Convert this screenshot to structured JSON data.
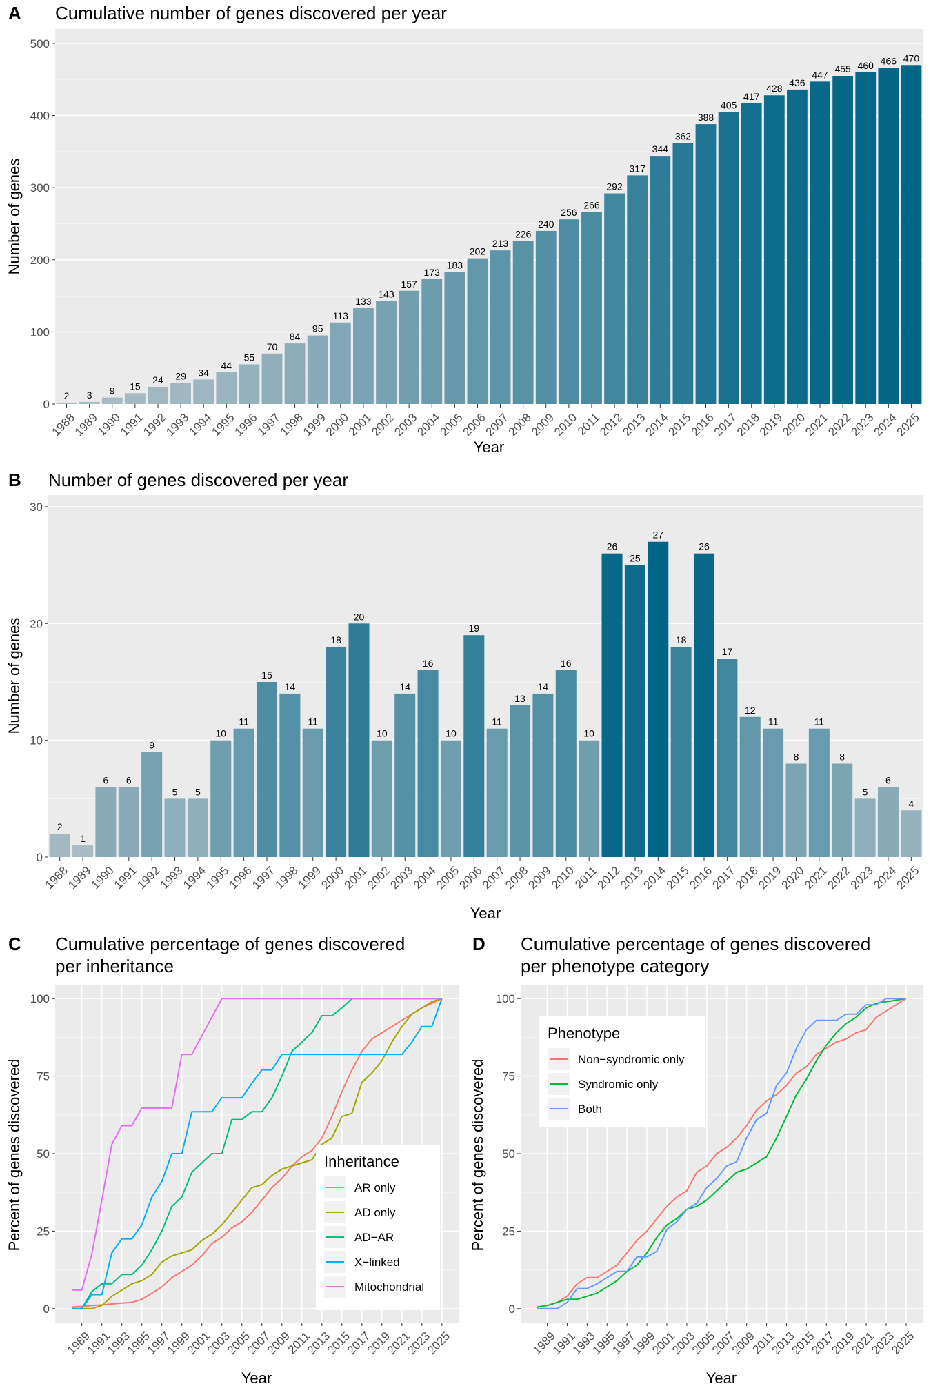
{
  "panels": {
    "A": {
      "letter": "A",
      "title": "Cumulative number of genes discovered per year",
      "xlabel": "Year",
      "ylabel": "Number of genes"
    },
    "B": {
      "letter": "B",
      "title": "Number of genes discovered per year",
      "xlabel": "Year",
      "ylabel": "Number of genes"
    },
    "C": {
      "letter": "C",
      "title_line1": "Cumulative percentage of genes discovered",
      "title_line2": "per inheritance",
      "xlabel": "Year",
      "ylabel": "Percent of genes discovered",
      "legend_title": "Inheritance"
    },
    "D": {
      "letter": "D",
      "title_line1": "Cumulative percentage of genes discovered",
      "title_line2": "per phenotype category",
      "xlabel": "Year",
      "ylabel": "Percent of genes discovered",
      "legend_title": "Phenotype"
    }
  },
  "colors": {
    "panel_bg": "#ebebeb",
    "grid": "#ffffff",
    "bar_low": "#a9bcc4",
    "bar_high": "#006587"
  },
  "chart_data": [
    {
      "id": "A",
      "type": "bar",
      "title": "Cumulative number of genes discovered per year",
      "xlabel": "Year",
      "ylabel": "Number of genes",
      "ylim": [
        0,
        520
      ],
      "yticks": [
        0,
        100,
        200,
        300,
        400,
        500
      ],
      "categories": [
        "1988",
        "1989",
        "1990",
        "1991",
        "1992",
        "1993",
        "1994",
        "1995",
        "1996",
        "1997",
        "1998",
        "1999",
        "2000",
        "2001",
        "2002",
        "2003",
        "2004",
        "2005",
        "2006",
        "2007",
        "2008",
        "2009",
        "2010",
        "2011",
        "2012",
        "2013",
        "2014",
        "2015",
        "2016",
        "2017",
        "2018",
        "2019",
        "2020",
        "2021",
        "2022",
        "2023",
        "2024",
        "2025"
      ],
      "values": [
        2,
        3,
        9,
        15,
        24,
        29,
        34,
        44,
        55,
        70,
        84,
        95,
        113,
        133,
        143,
        157,
        173,
        183,
        202,
        213,
        226,
        240,
        256,
        266,
        292,
        317,
        344,
        362,
        388,
        405,
        417,
        428,
        436,
        447,
        455,
        460,
        466,
        470
      ],
      "data_labels": true
    },
    {
      "id": "B",
      "type": "bar",
      "title": "Number of genes discovered per year",
      "xlabel": "Year",
      "ylabel": "Number of genes",
      "ylim": [
        0,
        31
      ],
      "yticks": [
        0,
        10,
        20,
        30
      ],
      "categories": [
        "1988",
        "1989",
        "1990",
        "1991",
        "1992",
        "1993",
        "1994",
        "1995",
        "1996",
        "1997",
        "1998",
        "1999",
        "2000",
        "2001",
        "2002",
        "2003",
        "2004",
        "2005",
        "2006",
        "2007",
        "2008",
        "2009",
        "2010",
        "2011",
        "2012",
        "2013",
        "2014",
        "2015",
        "2016",
        "2017",
        "2018",
        "2019",
        "2020",
        "2021",
        "2022",
        "2023",
        "2024",
        "2025"
      ],
      "values": [
        2,
        1,
        6,
        6,
        9,
        5,
        5,
        10,
        11,
        15,
        14,
        11,
        18,
        20,
        10,
        14,
        16,
        10,
        19,
        11,
        13,
        14,
        16,
        10,
        26,
        25,
        27,
        18,
        26,
        17,
        12,
        11,
        8,
        11,
        8,
        5,
        6,
        4
      ],
      "data_labels": true
    },
    {
      "id": "C",
      "type": "line",
      "title": "Cumulative percentage of genes discovered per inheritance",
      "xlabel": "Year",
      "ylabel": "Percent of genes discovered",
      "xlim": [
        1988,
        2025
      ],
      "ylim": [
        0,
        100
      ],
      "xticks": [
        1989,
        1991,
        1993,
        1995,
        1997,
        1999,
        2001,
        2003,
        2005,
        2007,
        2009,
        2011,
        2013,
        2015,
        2017,
        2019,
        2021,
        2023,
        2025
      ],
      "yticks": [
        0,
        25,
        50,
        75,
        100
      ],
      "legend_title": "Inheritance",
      "legend_position": "right",
      "x": [
        1988,
        1989,
        1990,
        1991,
        1992,
        1993,
        1994,
        1995,
        1996,
        1997,
        1998,
        1999,
        2000,
        2001,
        2002,
        2003,
        2004,
        2005,
        2006,
        2007,
        2008,
        2009,
        2010,
        2011,
        2012,
        2013,
        2014,
        2015,
        2016,
        2017,
        2018,
        2019,
        2020,
        2021,
        2022,
        2023,
        2024,
        2025
      ],
      "series": [
        {
          "name": "AR only",
          "color": "#f8766d",
          "values": [
            0.5,
            0.7,
            1,
            1.2,
            1.5,
            1.8,
            2,
            3,
            5,
            7,
            10,
            12,
            14,
            17,
            21,
            23,
            26,
            28,
            31,
            35,
            39,
            42,
            46,
            49,
            51,
            55,
            62,
            70,
            77,
            83,
            87,
            89,
            91,
            93,
            95,
            97,
            98.5,
            100
          ]
        },
        {
          "name": "AD only",
          "color": "#a3a500",
          "values": [
            0,
            0,
            0,
            1,
            4,
            6,
            8,
            9,
            11,
            15,
            17,
            18,
            19,
            22,
            24,
            27,
            31,
            35,
            39,
            40,
            43,
            45,
            46,
            47,
            48,
            53,
            55,
            62,
            63,
            73,
            76,
            80,
            86,
            91,
            95,
            97,
            99,
            100
          ]
        },
        {
          "name": "AD−AR",
          "color": "#00bf7d",
          "values": [
            0,
            0,
            5.5,
            8,
            8,
            11,
            11,
            14,
            19,
            25,
            33,
            36,
            44,
            47,
            50,
            50,
            61,
            61,
            63.5,
            63.5,
            68,
            75,
            83,
            86,
            89,
            94.5,
            94.5,
            97,
            100,
            100,
            100,
            100,
            100,
            100,
            100,
            100,
            100,
            100
          ]
        },
        {
          "name": "X−linked",
          "color": "#00b0f6",
          "values": [
            0,
            0,
            4.5,
            4.5,
            18,
            22.5,
            22.5,
            27,
            36,
            41,
            50,
            50,
            63.5,
            63.5,
            63.5,
            68,
            68,
            68,
            72.7,
            77,
            77,
            82,
            82,
            82,
            82,
            82,
            82,
            82,
            82,
            82,
            82,
            82,
            82,
            82,
            86,
            91,
            91,
            100
          ]
        },
        {
          "name": "Mitochondrial",
          "color": "#e76bf3",
          "values": [
            6,
            6,
            17.6,
            35,
            53,
            59,
            59,
            64.7,
            64.7,
            64.7,
            64.7,
            82,
            82,
            88,
            94,
            100,
            100,
            100,
            100,
            100,
            100,
            100,
            100,
            100,
            100,
            100,
            100,
            100,
            100,
            100,
            100,
            100,
            100,
            100,
            100,
            100,
            100,
            100
          ]
        }
      ]
    },
    {
      "id": "D",
      "type": "line",
      "title": "Cumulative percentage of genes discovered per phenotype category",
      "xlabel": "Year",
      "ylabel": "Percent of genes discovered",
      "xlim": [
        1988,
        2025
      ],
      "ylim": [
        0,
        100
      ],
      "xticks": [
        1989,
        1991,
        1993,
        1995,
        1997,
        1999,
        2001,
        2003,
        2005,
        2007,
        2009,
        2011,
        2013,
        2015,
        2017,
        2019,
        2021,
        2023,
        2025
      ],
      "yticks": [
        0,
        25,
        50,
        75,
        100
      ],
      "legend_title": "Phenotype",
      "legend_position": "top-left",
      "x": [
        1988,
        1989,
        1990,
        1991,
        1992,
        1993,
        1994,
        1995,
        1996,
        1997,
        1998,
        1999,
        2000,
        2001,
        2002,
        2003,
        2004,
        2005,
        2006,
        2007,
        2008,
        2009,
        2010,
        2011,
        2012,
        2013,
        2014,
        2015,
        2016,
        2017,
        2018,
        2019,
        2020,
        2021,
        2022,
        2023,
        2024,
        2025
      ],
      "series": [
        {
          "name": "Non−syndromic only",
          "color": "#f8766d",
          "values": [
            0.5,
            1,
            2,
            4,
            8,
            10,
            10,
            12,
            14,
            18,
            22,
            25,
            29,
            33,
            36,
            38,
            44,
            46,
            50,
            52,
            55,
            59,
            64,
            67,
            69,
            72,
            76,
            78,
            82,
            84,
            86,
            87,
            89,
            90,
            94,
            96,
            98,
            100
          ]
        },
        {
          "name": "Syndromic only",
          "color": "#00ba38",
          "values": [
            0.5,
            1,
            2,
            3,
            3,
            4,
            5,
            7,
            9,
            12,
            14,
            18,
            23,
            27,
            29,
            32,
            33,
            35,
            38,
            41,
            44,
            45,
            47,
            49,
            55,
            62,
            69,
            74,
            80,
            85,
            89,
            92,
            94,
            97,
            98.5,
            99,
            99.5,
            100
          ]
        },
        {
          "name": "Both",
          "color": "#619cff",
          "values": [
            0,
            0,
            0,
            2,
            6.5,
            6.5,
            8,
            10,
            12,
            12,
            16.7,
            16.7,
            18.5,
            25.5,
            28,
            32,
            34,
            39,
            42,
            46,
            47.4,
            55,
            61,
            63,
            72,
            76,
            84,
            90,
            93,
            93,
            93,
            95,
            95,
            98,
            98,
            100,
            100,
            100
          ]
        }
      ]
    }
  ]
}
